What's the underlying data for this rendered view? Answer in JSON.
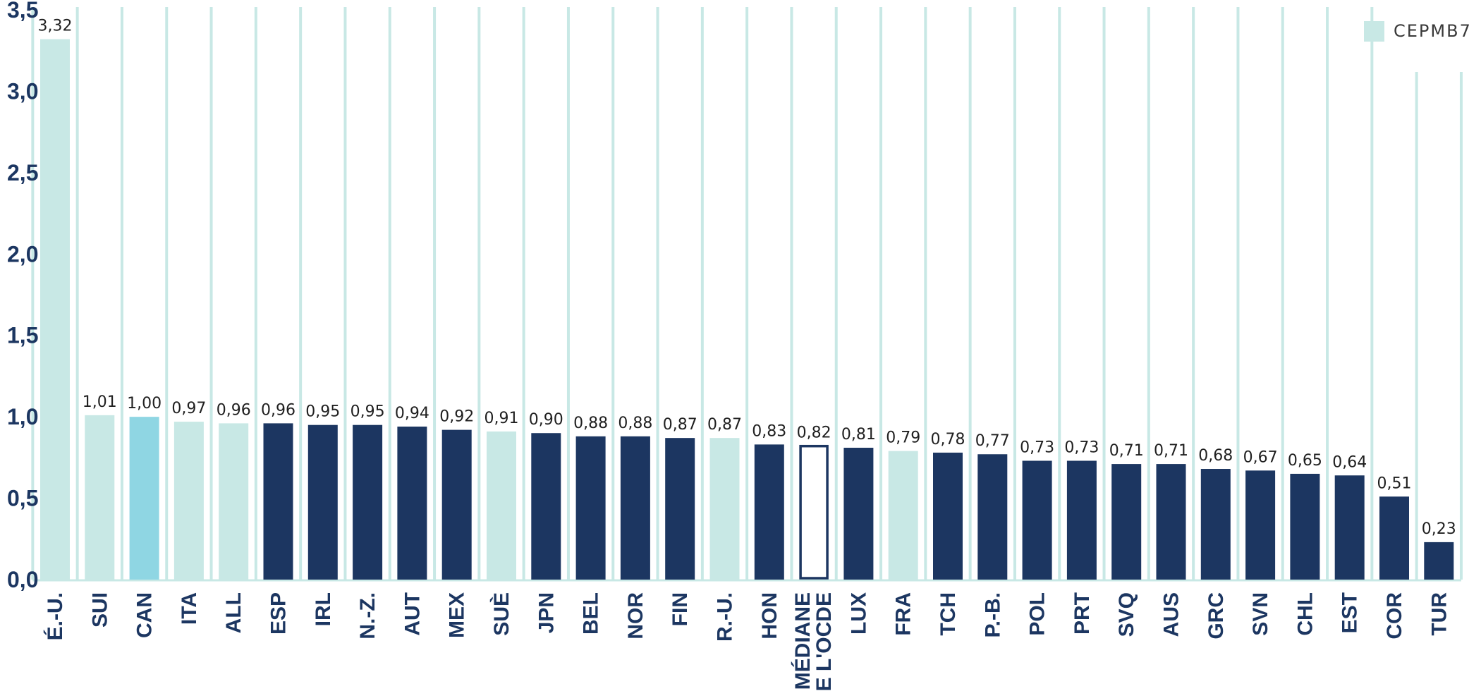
{
  "chart_data": {
    "type": "bar",
    "categories": [
      "É.-U.",
      "SUI",
      "CAN",
      "ITA",
      "ALL",
      "ESP",
      "IRL",
      "N.-Z.",
      "AUT",
      "MEX",
      "SUÈ",
      "JPN",
      "BEL",
      "NOR",
      "FIN",
      "R.-U.",
      "HON",
      "MÉDIANE DE L'OCDE",
      "LUX",
      "FRA",
      "TCH",
      "P.-B.",
      "POL",
      "PRT",
      "SVQ",
      "AUS",
      "GRC",
      "SVN",
      "CHL",
      "EST",
      "COR",
      "TUR"
    ],
    "category_lines": [
      [
        "É.-U."
      ],
      [
        "SUI"
      ],
      [
        "CAN"
      ],
      [
        "ITA"
      ],
      [
        "ALL"
      ],
      [
        "ESP"
      ],
      [
        "IRL"
      ],
      [
        "N.-Z."
      ],
      [
        "AUT"
      ],
      [
        "MEX"
      ],
      [
        "SUÈ"
      ],
      [
        "JPN"
      ],
      [
        "BEL"
      ],
      [
        "NOR"
      ],
      [
        "FIN"
      ],
      [
        "R.-U."
      ],
      [
        "HON"
      ],
      [
        "MÉDIANE",
        "DE L'OCDE"
      ],
      [
        "LUX"
      ],
      [
        "FRA"
      ],
      [
        "TCH"
      ],
      [
        "P.-B."
      ],
      [
        "POL"
      ],
      [
        "PRT"
      ],
      [
        "SVQ"
      ],
      [
        "AUS"
      ],
      [
        "GRC"
      ],
      [
        "SVN"
      ],
      [
        "CHL"
      ],
      [
        "EST"
      ],
      [
        "COR"
      ],
      [
        "TUR"
      ]
    ],
    "values": [
      3.32,
      1.01,
      1.0,
      0.97,
      0.96,
      0.96,
      0.95,
      0.95,
      0.94,
      0.92,
      0.91,
      0.9,
      0.88,
      0.88,
      0.87,
      0.87,
      0.83,
      0.82,
      0.81,
      0.79,
      0.78,
      0.77,
      0.73,
      0.73,
      0.71,
      0.71,
      0.68,
      0.67,
      0.65,
      0.64,
      0.51,
      0.23
    ],
    "value_labels": [
      "3,32",
      "1,01",
      "1,00",
      "0,97",
      "0,96",
      "0,96",
      "0,95",
      "0,95",
      "0,94",
      "0,92",
      "0,91",
      "0,90",
      "0,88",
      "0,88",
      "0,87",
      "0,87",
      "0,83",
      "0,82",
      "0,81",
      "0,79",
      "0,78",
      "0,77",
      "0,73",
      "0,73",
      "0,71",
      "0,71",
      "0,68",
      "0,67",
      "0,65",
      "0,64",
      "0,51",
      "0,23"
    ],
    "bar_style": [
      "cepmb7",
      "cepmb7",
      "canada",
      "cepmb7",
      "cepmb7",
      "other",
      "other",
      "other",
      "other",
      "other",
      "cepmb7",
      "other",
      "other",
      "other",
      "other",
      "cepmb7",
      "other",
      "median",
      "other",
      "cepmb7",
      "other",
      "other",
      "other",
      "other",
      "other",
      "other",
      "other",
      "other",
      "other",
      "other",
      "other",
      "other"
    ],
    "yticks": [
      0.0,
      0.5,
      1.0,
      1.5,
      2.0,
      2.5,
      3.0,
      3.5
    ],
    "ytick_labels": [
      "0,0",
      "0,5",
      "1,0",
      "1,5",
      "2,0",
      "2,5",
      "3,0",
      "3,5"
    ],
    "ylim": [
      0,
      3.5
    ],
    "xlabel": "",
    "ylabel": "",
    "grid": "vertical",
    "legend": {
      "position": "top-right",
      "entries": [
        {
          "name": "CEPMB7",
          "style": "cepmb7"
        }
      ]
    },
    "colors": {
      "cepmb7": "#c8e8e5",
      "canada": "#8fd6e3",
      "other": "#1c3661",
      "median_fill": "#ffffff",
      "median_stroke": "#1c3661",
      "gridline": "#c8e8e5",
      "axis_text": "#1c3661",
      "value_text": "#1f1f1f"
    }
  }
}
